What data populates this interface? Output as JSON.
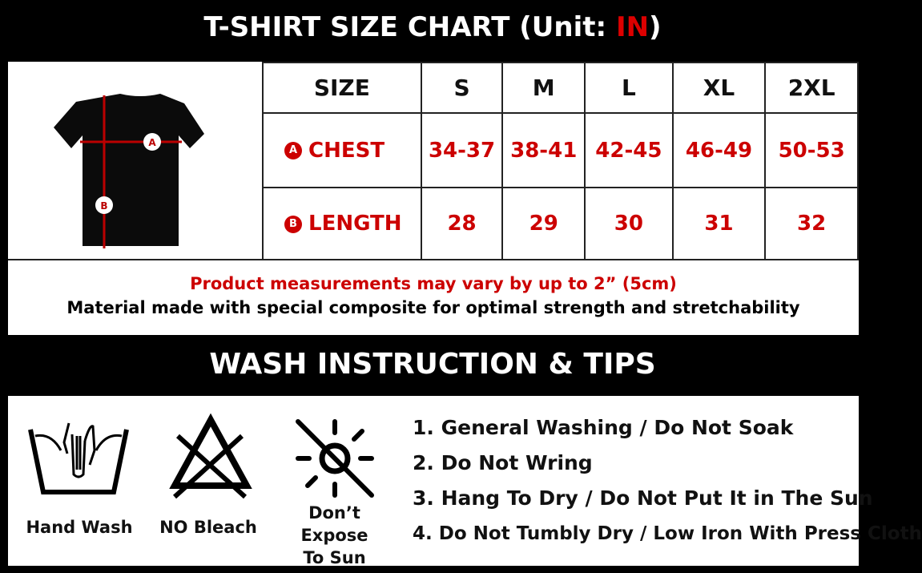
{
  "title": {
    "prefix": "T-SHIRT SIZE CHART (Unit: ",
    "unit": "IN",
    "suffix": ")"
  },
  "size_table": {
    "header_label": "SIZE",
    "sizes": [
      "S",
      "M",
      "L",
      "XL",
      "2XL"
    ],
    "rows": [
      {
        "badge": "A",
        "label": "CHEST",
        "values": [
          "34-37",
          "38-41",
          "42-45",
          "46-49",
          "50-53"
        ]
      },
      {
        "badge": "B",
        "label": "LENGTH",
        "values": [
          "28",
          "29",
          "30",
          "31",
          "32"
        ]
      }
    ]
  },
  "diagram": {
    "marker_a": "A",
    "marker_b": "B"
  },
  "notes": {
    "variance": "Product measurements may vary by up to 2” (5cm)",
    "material": "Material made with special composite for optimal strength and stretchability"
  },
  "wash": {
    "title": "WASH INSTRUCTION & TIPS",
    "icons": [
      {
        "icon": "hand-wash-icon",
        "label": "Hand Wash"
      },
      {
        "icon": "no-bleach-icon",
        "label": "NO Bleach"
      },
      {
        "icon": "no-sun-icon",
        "label_line1": "Don’t Expose",
        "label_line2": "To Sun"
      }
    ],
    "tips": [
      "1. General Washing / Do Not Soak",
      "2. Do Not Wring",
      "3. Hang To Dry / Do Not Put It in The Sun",
      "4. Do Not Tumbly Dry / Low Iron With Press Cloth"
    ]
  },
  "colors": {
    "accent_red": "#cc0000",
    "background": "#000000"
  }
}
